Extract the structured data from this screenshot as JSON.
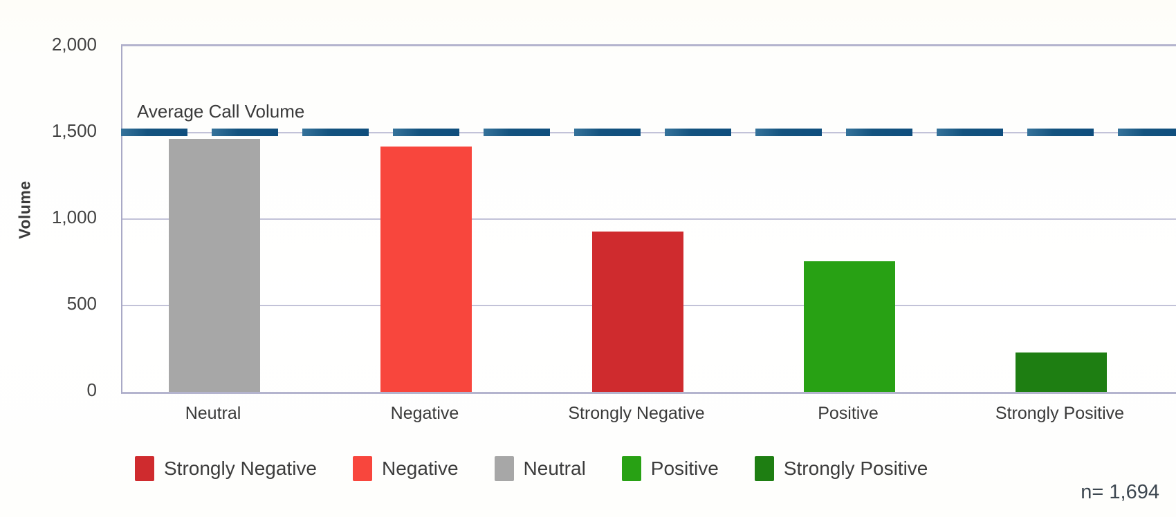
{
  "chart_data": {
    "type": "bar",
    "title": "",
    "xlabel": "",
    "ylabel": "Volume",
    "categories": [
      "Neutral",
      "Negative",
      "Strongly Negative",
      "Positive",
      "Strongly Positive"
    ],
    "values": [
      1465,
      1420,
      930,
      755,
      228
    ],
    "bar_colors": [
      "#a7a7a7",
      "#f8463d",
      "#cf2b2e",
      "#28a114",
      "#1e7e12"
    ],
    "ylim": [
      0,
      2000
    ],
    "yticks": [
      0,
      500,
      1000,
      1500,
      2000
    ],
    "ytick_labels": [
      "0",
      "500",
      "1,000",
      "1,500",
      "2,000"
    ],
    "grid": true,
    "reference_line": {
      "label": "Average Call Volume",
      "value": 1500,
      "color": "#11517f",
      "style": "dashed"
    },
    "legend_position": "bottom",
    "legend": [
      {
        "label": "Strongly Negative",
        "color": "#cf2b2e"
      },
      {
        "label": "Negative",
        "color": "#f8463d"
      },
      {
        "label": "Neutral",
        "color": "#a7a7a7"
      },
      {
        "label": "Positive",
        "color": "#28a114"
      },
      {
        "label": "Strongly Positive",
        "color": "#1e7e12"
      }
    ],
    "annotation": "n= 1,694"
  }
}
